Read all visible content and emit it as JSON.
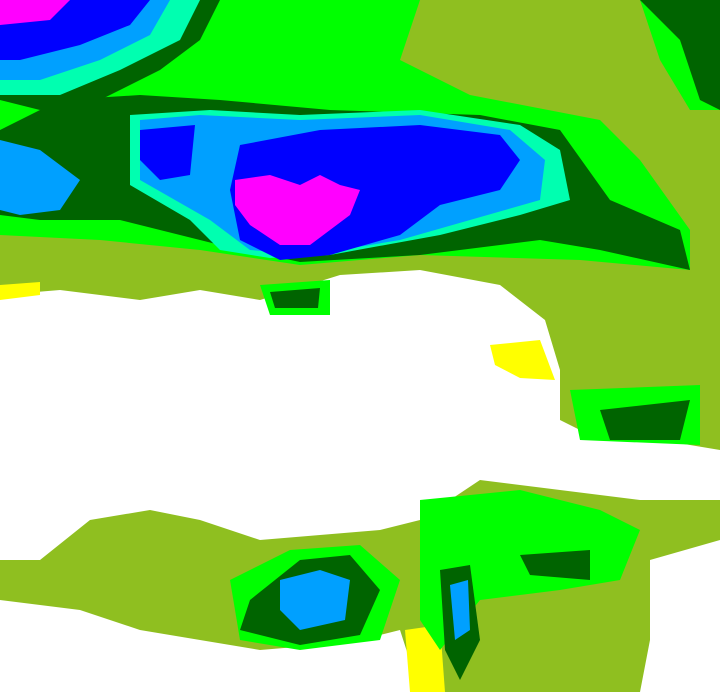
{
  "palette": {
    "background": "#8fbf20",
    "green": "#00ff00",
    "dark_green": "#006400",
    "cyan": "#00ffb0",
    "light_blue": "#00a0ff",
    "blue": "#0000ff",
    "magenta": "#ff00ff",
    "yellow": "#ffff00",
    "white": "#ffffff"
  }
}
